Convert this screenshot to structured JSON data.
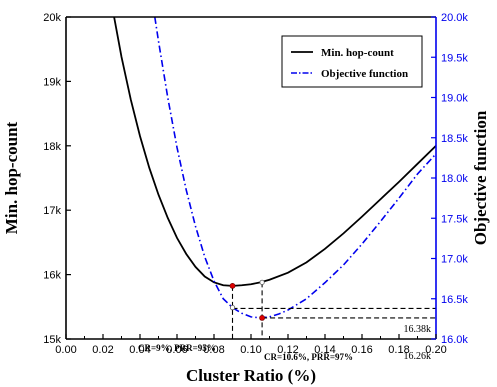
{
  "chart_data": {
    "type": "line",
    "xlabel": "Cluster Ratio (%)",
    "ylabel_left": "Min. hop-count",
    "ylabel_right": "Objective function",
    "xlim": [
      0.0,
      0.2
    ],
    "ylim_left": [
      15000,
      20000
    ],
    "ylim_right": [
      16000,
      20000
    ],
    "x_ticks": [
      "0.00",
      "0.02",
      "0.04",
      "0.06",
      "0.08",
      "0.10",
      "0.12",
      "0.14",
      "0.16",
      "0.18",
      "0.20"
    ],
    "y_left_ticks": [
      "15k",
      "16k",
      "17k",
      "18k",
      "19k",
      "20k"
    ],
    "y_right_ticks": [
      "16.0k",
      "16.5k",
      "17.0k",
      "17.5k",
      "18.0k",
      "18.5k",
      "19.0k",
      "19.5k",
      "20.0k"
    ],
    "legend_position": "top-right",
    "series": [
      {
        "name": "Min. hop-count",
        "axis": "left",
        "color": "#000000",
        "style": "solid",
        "x": [
          0.026,
          0.03,
          0.035,
          0.04,
          0.045,
          0.05,
          0.055,
          0.06,
          0.065,
          0.07,
          0.075,
          0.08,
          0.085,
          0.09,
          0.095,
          0.1,
          0.105,
          0.11,
          0.12,
          0.13,
          0.14,
          0.15,
          0.16,
          0.17,
          0.18,
          0.19,
          0.2
        ],
        "y": [
          20000,
          19380,
          18720,
          18150,
          17660,
          17240,
          16880,
          16570,
          16320,
          16120,
          15970,
          15880,
          15835,
          15825,
          15835,
          15850,
          15880,
          15920,
          16030,
          16190,
          16400,
          16640,
          16900,
          17170,
          17440,
          17720,
          18000
        ]
      },
      {
        "name": "Objective function",
        "axis": "right",
        "color": "#0000ee",
        "style": "dash-dot",
        "x": [
          0.048,
          0.05,
          0.055,
          0.06,
          0.065,
          0.07,
          0.075,
          0.08,
          0.085,
          0.09,
          0.095,
          0.1,
          0.105,
          0.11,
          0.115,
          0.12,
          0.13,
          0.14,
          0.15,
          0.16,
          0.17,
          0.18,
          0.19,
          0.2
        ],
        "y": [
          20000,
          19700,
          19000,
          18380,
          17850,
          17400,
          17020,
          16720,
          16500,
          16390,
          16320,
          16275,
          16262,
          16275,
          16310,
          16360,
          16500,
          16700,
          16920,
          17180,
          17460,
          17750,
          18050,
          18300
        ]
      }
    ],
    "annotations": [
      {
        "text": "CR=9%, PRR=95%",
        "x": 0.09,
        "y": 15825,
        "axis": "left"
      },
      {
        "text": "CR=10.6%, PRR=97%",
        "x": 0.106,
        "y": 16262,
        "axis": "right"
      },
      {
        "text": "16.38k",
        "y": 16380,
        "axis": "right"
      },
      {
        "text": "16.26k",
        "y": 16262,
        "axis": "right"
      }
    ]
  }
}
